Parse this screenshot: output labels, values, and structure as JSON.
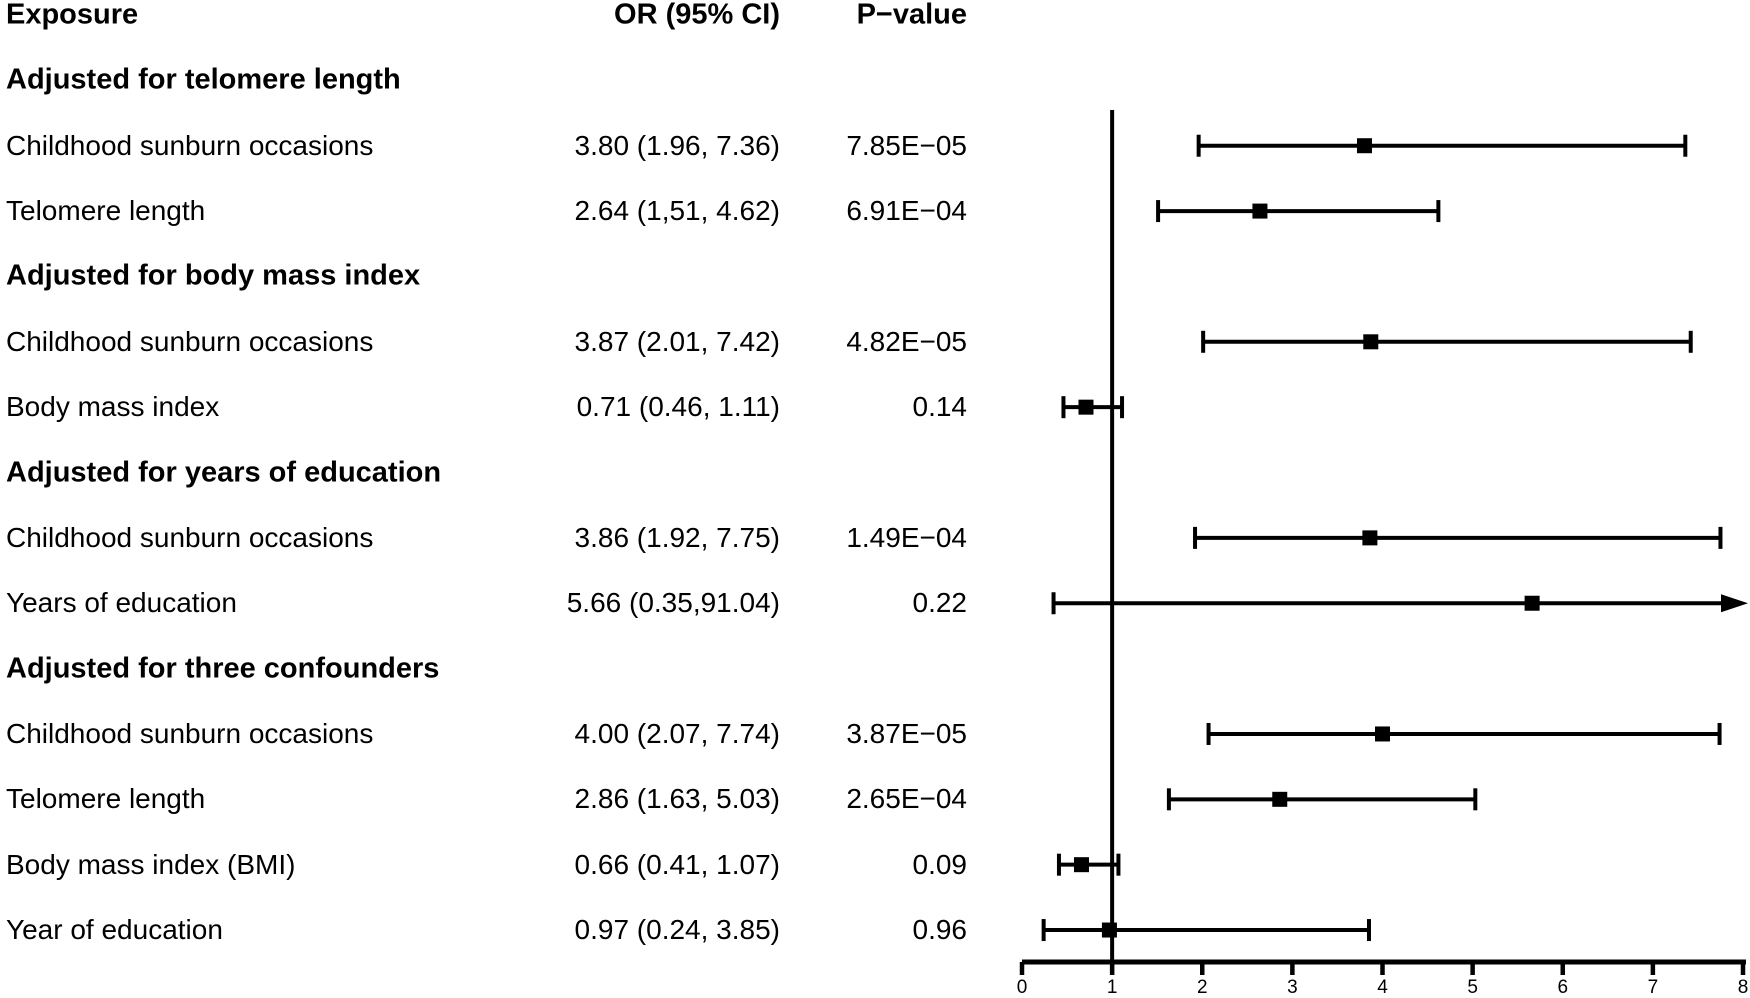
{
  "chart_data": {
    "type": "scatter",
    "variant": "forest-plot",
    "title": "",
    "columns": [
      "Exposure",
      "OR (95% CI)",
      "P−value"
    ],
    "x_axis": {
      "min": 0,
      "max": 8,
      "ticks": [
        "0",
        "1",
        "2",
        "3",
        "4",
        "5",
        "6",
        "7",
        "8"
      ],
      "reference_line": 1,
      "grid": false
    },
    "marker_color": "#000000",
    "rows": [
      {
        "type": "group",
        "label": "Adjusted for telomere length"
      },
      {
        "type": "data",
        "label": "Childhood sunburn occasions",
        "or_text": "3.80 (1.96, 7.36)",
        "p_text": "7.85E−05",
        "or": 3.8,
        "lo": 1.96,
        "hi": 7.36
      },
      {
        "type": "data",
        "label": "Telomere length",
        "or_text": "2.64 (1,51, 4.62)",
        "p_text": "6.91E−04",
        "or": 2.64,
        "lo": 1.51,
        "hi": 4.62
      },
      {
        "type": "group",
        "label": "Adjusted for body mass index"
      },
      {
        "type": "data",
        "label": "Childhood sunburn occasions",
        "or_text": "3.87 (2.01, 7.42)",
        "p_text": "4.82E−05",
        "or": 3.87,
        "lo": 2.01,
        "hi": 7.42
      },
      {
        "type": "data",
        "label": "Body mass index",
        "or_text": "0.71 (0.46, 1.11)",
        "p_text": "0.14",
        "or": 0.71,
        "lo": 0.46,
        "hi": 1.11
      },
      {
        "type": "group",
        "label": "Adjusted for years of education"
      },
      {
        "type": "data",
        "label": "Childhood sunburn occasions",
        "or_text": "3.86 (1.92, 7.75)",
        "p_text": "1.49E−04",
        "or": 3.86,
        "lo": 1.92,
        "hi": 7.75
      },
      {
        "type": "data",
        "label": "Years of education",
        "or_text": "5.66 (0.35,91.04)",
        "p_text": "0.22",
        "or": 5.66,
        "lo": 0.35,
        "hi": 91.04
      },
      {
        "type": "group",
        "label": "Adjusted for three confounders"
      },
      {
        "type": "data",
        "label": "Childhood sunburn occasions",
        "or_text": "4.00 (2.07, 7.74)",
        "p_text": "3.87E−05",
        "or": 4.0,
        "lo": 2.07,
        "hi": 7.74
      },
      {
        "type": "data",
        "label": "Telomere length",
        "or_text": "2.86 (1.63, 5.03)",
        "p_text": "2.65E−04",
        "or": 2.86,
        "lo": 1.63,
        "hi": 5.03
      },
      {
        "type": "data",
        "label": "Body mass index (BMI)",
        "or_text": "0.66 (0.41, 1.07)",
        "p_text": "0.09",
        "or": 0.66,
        "lo": 0.41,
        "hi": 1.07
      },
      {
        "type": "data",
        "label": "Year of education",
        "or_text": "0.97 (0.24, 3.85)",
        "p_text": "0.96",
        "or": 0.97,
        "lo": 0.24,
        "hi": 3.85
      }
    ]
  }
}
